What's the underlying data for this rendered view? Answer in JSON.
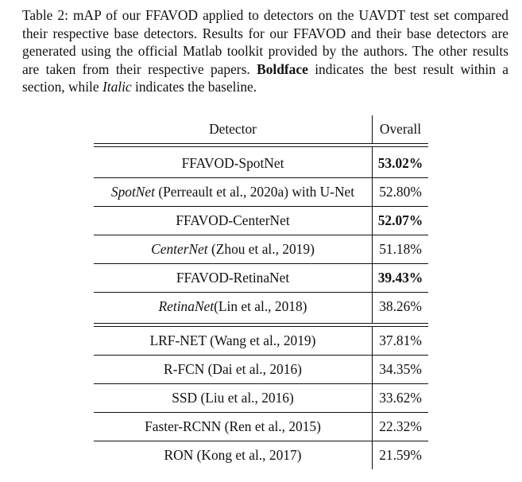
{
  "caption": {
    "label": "Table 2:",
    "text": "mAP of our FFAVOD applied to detectors on the UAVDT test set compared their respective base detectors. Results for our FFAVOD and their base detectors are generated using the official Matlab toolkit provided by the authors. The other results are taken from their respective papers.",
    "boldface_word": "Boldface",
    "boldface_text": "indicates the best result within a section, while",
    "italic_word": "Italic",
    "italic_text": "indicates the baseline."
  },
  "table": {
    "headers": [
      "Detector",
      "Overall"
    ],
    "rows": [
      {
        "italic": "",
        "detector": "FFAVOD-SpotNet",
        "overall": "53.02%",
        "bold": true
      },
      {
        "italic": "SpotNet",
        "detector": " (Perreault et al., 2020a) with U-Net",
        "overall": "52.80%",
        "bold": false
      },
      {
        "italic": "",
        "detector": "FFAVOD-CenterNet",
        "overall": "52.07%",
        "bold": true
      },
      {
        "italic": "CenterNet",
        "detector": " (Zhou et al., 2019)",
        "overall": "51.18%",
        "bold": false
      },
      {
        "italic": "",
        "detector": "FFAVOD-RetinaNet",
        "overall": "39.43%",
        "bold": true
      },
      {
        "italic": "RetinaNet",
        "detector": "(Lin et al., 2018)",
        "overall": "38.26%",
        "bold": false
      },
      {
        "italic": "",
        "detector": "LRF-NET (Wang et al., 2019)",
        "overall": "37.81%",
        "bold": false
      },
      {
        "italic": "",
        "detector": "R-FCN (Dai et al., 2016)",
        "overall": "34.35%",
        "bold": false
      },
      {
        "italic": "",
        "detector": "SSD (Liu et al., 2016)",
        "overall": "33.62%",
        "bold": false
      },
      {
        "italic": "",
        "detector": "Faster-RCNN (Ren et al., 2015)",
        "overall": "22.32%",
        "bold": false
      },
      {
        "italic": "",
        "detector": "RON (Kong et al., 2017)",
        "overall": "21.59%",
        "bold": false
      }
    ]
  }
}
